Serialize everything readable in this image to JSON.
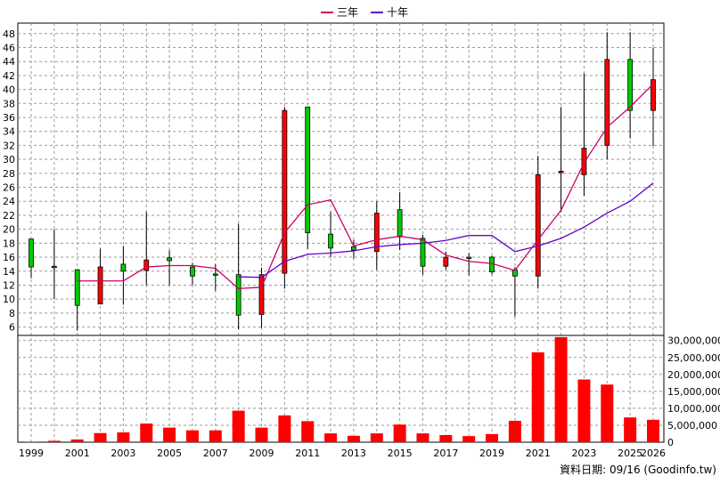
{
  "legend": {
    "series3": "三年",
    "series10": "十年"
  },
  "footer": "資料日期: 09/16 (Goodinfo.tw)",
  "colors": {
    "up": "#ff0000",
    "down": "#00cc00",
    "ma3": "#cc0066",
    "ma10": "#6600cc",
    "volume": "#ff0000",
    "grid": "#999999"
  },
  "chart_data": {
    "type": "candlestick",
    "x_tick_labels": [
      "1999",
      "2001",
      "2003",
      "2005",
      "2007",
      "2009",
      "2011",
      "2013",
      "2015",
      "2017",
      "2019",
      "2021",
      "2023",
      "2025",
      "2026"
    ],
    "price_y_ticks": [
      6,
      8,
      10,
      12,
      14,
      16,
      18,
      20,
      22,
      24,
      26,
      28,
      30,
      32,
      34,
      36,
      38,
      40,
      42,
      44,
      46,
      48
    ],
    "price_ylim": [
      4.8,
      49.5
    ],
    "volume_ylim": [
      0,
      31500000
    ],
    "volume_y_ticks": [
      0,
      5000000,
      10000000,
      15000000,
      20000000,
      25000000,
      30000000
    ],
    "volume_y_tick_labels": [
      "0",
      "5,000,000",
      "10,000,000",
      "15,000,000",
      "20,000,000",
      "25,000,000",
      "30,000,000"
    ],
    "grid": true,
    "candles": [
      {
        "year": 1999,
        "open": 14.6,
        "close": 18.6,
        "high": 18.6,
        "low": 13.0,
        "dir": "down"
      },
      {
        "year": 2000,
        "open": 14.5,
        "close": 14.7,
        "high": 20.0,
        "low": 10.0,
        "dir": "down"
      },
      {
        "year": 2001,
        "open": 14.2,
        "close": 9.1,
        "high": 14.2,
        "low": 5.5,
        "dir": "down"
      },
      {
        "year": 2002,
        "open": 9.3,
        "close": 14.6,
        "high": 17.2,
        "low": 9.3,
        "dir": "up"
      },
      {
        "year": 2003,
        "open": 14.0,
        "close": 15.0,
        "high": 17.6,
        "low": 9.2,
        "dir": "down"
      },
      {
        "year": 2004,
        "open": 14.1,
        "close": 15.6,
        "high": 22.5,
        "low": 12.0,
        "dir": "up"
      },
      {
        "year": 2005,
        "open": 15.5,
        "close": 15.9,
        "high": 17.0,
        "low": 12.0,
        "dir": "down"
      },
      {
        "year": 2006,
        "open": 13.3,
        "close": 14.6,
        "high": 15.2,
        "low": 12.0,
        "dir": "down"
      },
      {
        "year": 2007,
        "open": 13.6,
        "close": 13.6,
        "high": 15.0,
        "low": 11.2,
        "dir": "down"
      },
      {
        "year": 2008,
        "open": 13.5,
        "close": 7.7,
        "high": 20.8,
        "low": 5.7,
        "dir": "down"
      },
      {
        "year": 2009,
        "open": 7.8,
        "close": 13.5,
        "high": 14.5,
        "low": 5.9,
        "dir": "up"
      },
      {
        "year": 2010,
        "open": 13.7,
        "close": 37.0,
        "high": 37.5,
        "low": 11.5,
        "dir": "up"
      },
      {
        "year": 2011,
        "open": 37.5,
        "close": 19.5,
        "high": 37.5,
        "low": 17.2,
        "dir": "down"
      },
      {
        "year": 2012,
        "open": 19.3,
        "close": 17.3,
        "high": 22.5,
        "low": 16.0,
        "dir": "down"
      },
      {
        "year": 2013,
        "open": 17.0,
        "close": 17.5,
        "high": 18.5,
        "low": 15.8,
        "dir": "down"
      },
      {
        "year": 2014,
        "open": 16.8,
        "close": 22.3,
        "high": 24.0,
        "low": 14.2,
        "dir": "up"
      },
      {
        "year": 2015,
        "open": 22.8,
        "close": 18.9,
        "high": 25.3,
        "low": 17.0,
        "dir": "down"
      },
      {
        "year": 2016,
        "open": 18.7,
        "close": 14.7,
        "high": 19.2,
        "low": 13.5,
        "dir": "down"
      },
      {
        "year": 2017,
        "open": 14.7,
        "close": 16.0,
        "high": 16.8,
        "low": 14.2,
        "dir": "up"
      },
      {
        "year": 2018,
        "open": 16.0,
        "close": 15.9,
        "high": 16.6,
        "low": 13.4,
        "dir": "down"
      },
      {
        "year": 2019,
        "open": 16.0,
        "close": 13.9,
        "high": 16.2,
        "low": 13.5,
        "dir": "down"
      },
      {
        "year": 2020,
        "open": 14.2,
        "close": 13.3,
        "high": 14.6,
        "low": 7.5,
        "dir": "down"
      },
      {
        "year": 2021,
        "open": 13.3,
        "close": 27.8,
        "high": 30.5,
        "low": 11.5,
        "dir": "up"
      },
      {
        "year": 2022,
        "open": 28.2,
        "close": 28.3,
        "high": 37.5,
        "low": 22.5,
        "dir": "up"
      },
      {
        "year": 2023,
        "open": 27.8,
        "close": 31.6,
        "high": 42.3,
        "low": 24.8,
        "dir": "up"
      },
      {
        "year": 2024,
        "open": 32.0,
        "close": 44.3,
        "high": 48.2,
        "low": 30.0,
        "dir": "up"
      },
      {
        "year": 2025,
        "open": 44.3,
        "close": 37.0,
        "high": 48.2,
        "low": 33.0,
        "dir": "down"
      },
      {
        "year": 2026,
        "open": 37.0,
        "close": 41.4,
        "high": 46.0,
        "low": 31.9,
        "dir": "up"
      }
    ],
    "series": [
      {
        "name": "三年",
        "x": [
          2001,
          2002,
          2003,
          2004,
          2005,
          2006,
          2007,
          2008,
          2009,
          2010,
          2011,
          2012,
          2013,
          2014,
          2015,
          2016,
          2017,
          2018,
          2019,
          2020,
          2021,
          2022,
          2023,
          2024,
          2025,
          2026
        ],
        "values": [
          12.6,
          12.6,
          12.6,
          14.6,
          14.8,
          14.8,
          14.4,
          11.5,
          11.7,
          19.5,
          23.5,
          24.2,
          17.6,
          18.5,
          19.0,
          18.5,
          16.3,
          15.4,
          15.1,
          14.1,
          18.5,
          22.7,
          29.5,
          34.6,
          37.5,
          40.8
        ]
      },
      {
        "name": "十年",
        "x": [
          2008,
          2009,
          2010,
          2011,
          2012,
          2013,
          2014,
          2015,
          2016,
          2017,
          2018,
          2019,
          2020,
          2021,
          2022,
          2023,
          2024,
          2025,
          2026
        ],
        "values": [
          13.2,
          13.1,
          15.4,
          16.4,
          16.6,
          16.9,
          17.5,
          17.8,
          18.0,
          18.4,
          19.1,
          19.1,
          16.8,
          17.6,
          18.7,
          20.3,
          22.3,
          24.0,
          26.6
        ]
      }
    ],
    "volume": {
      "x": [
        1999,
        2000,
        2001,
        2002,
        2003,
        2004,
        2005,
        2006,
        2007,
        2008,
        2009,
        2010,
        2011,
        2012,
        2013,
        2014,
        2015,
        2016,
        2017,
        2018,
        2019,
        2020,
        2021,
        2022,
        2023,
        2024,
        2025,
        2026
      ],
      "values": [
        150000,
        400000,
        800000,
        2700000,
        2900000,
        5500000,
        4300000,
        3500000,
        3500000,
        9300000,
        4300000,
        7900000,
        6200000,
        2600000,
        1900000,
        2600000,
        5200000,
        2600000,
        2100000,
        1800000,
        2400000,
        6300000,
        26500000,
        31000000,
        18500000,
        17000000,
        7300000,
        6600000
      ]
    }
  }
}
